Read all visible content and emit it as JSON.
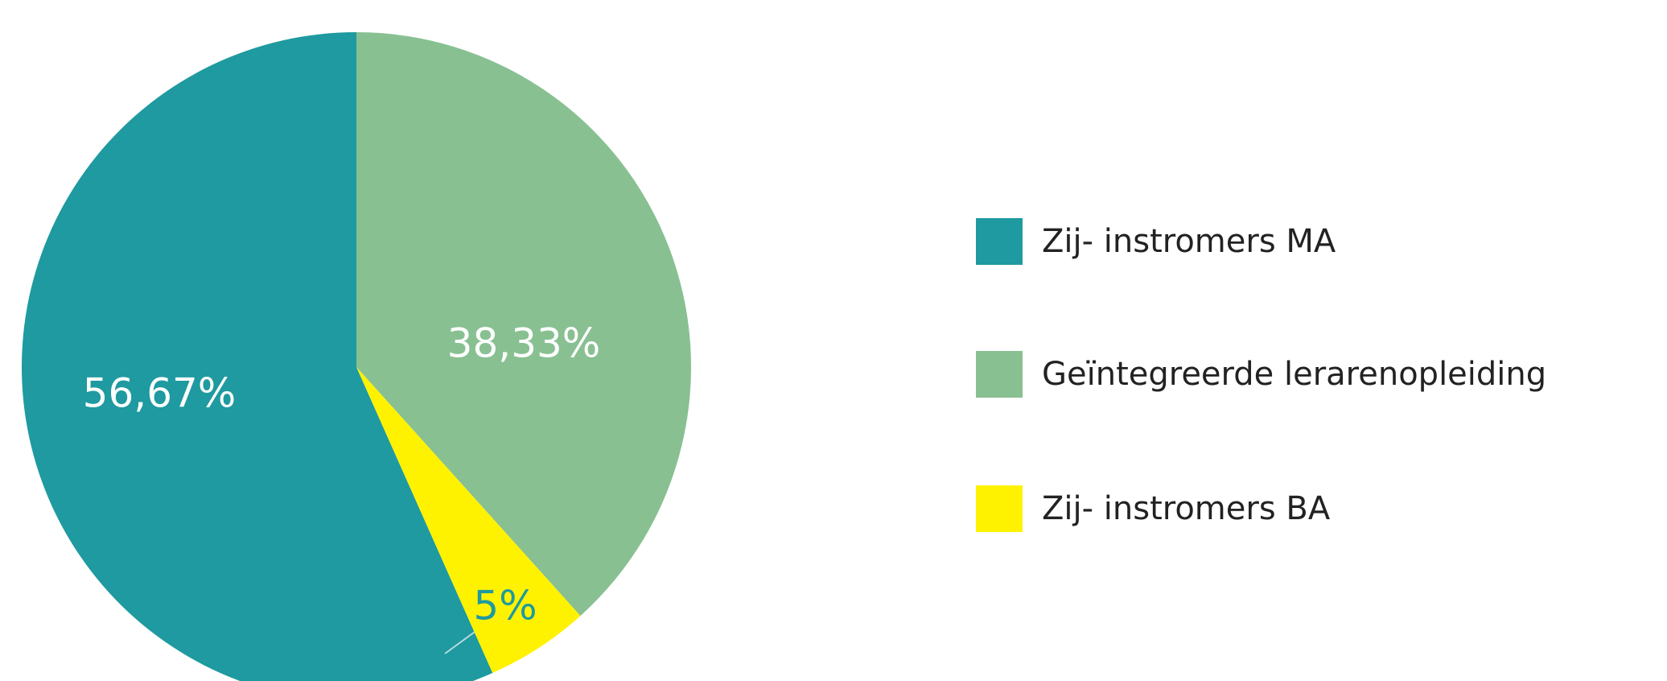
{
  "chart_data": {
    "type": "pie",
    "categories": [
      "Zij- instromers MA",
      "Geïntegreerde lerarenopleiding",
      "Zij- instromers BA"
    ],
    "values": [
      56.67,
      38.33,
      5
    ],
    "value_labels": [
      "56,67%",
      "38,33%",
      "5%"
    ],
    "colors": [
      "#1e9aa0",
      "#88c092",
      "#fff200"
    ],
    "legend": "right"
  }
}
